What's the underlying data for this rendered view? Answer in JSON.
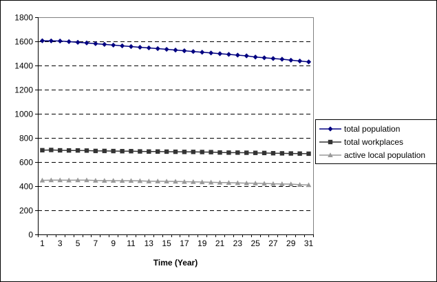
{
  "chart_data": {
    "type": "line",
    "title": "",
    "xlabel": "Time (Year)",
    "ylabel": "",
    "xlim": [
      1,
      31
    ],
    "ylim": [
      0,
      1800
    ],
    "y_ticks": [
      "0",
      "200",
      "400",
      "600",
      "800",
      "1000",
      "1200",
      "1400",
      "1600",
      "1800"
    ],
    "x_ticks": [
      "1",
      "3",
      "5",
      "7",
      "9",
      "11",
      "13",
      "15",
      "17",
      "19",
      "21",
      "23",
      "25",
      "27",
      "29",
      "31"
    ],
    "grid": "horizontal dashed",
    "legend_position": "right",
    "x": [
      1,
      2,
      3,
      4,
      5,
      6,
      7,
      8,
      9,
      10,
      11,
      12,
      13,
      14,
      15,
      16,
      17,
      18,
      19,
      20,
      21,
      22,
      23,
      24,
      25,
      26,
      27,
      28,
      29,
      30,
      31
    ],
    "series": [
      {
        "name": "total population",
        "color": "#000080",
        "marker": "diamond",
        "values": [
          1605,
          1604,
          1603,
          1598,
          1592,
          1587,
          1581,
          1575,
          1569,
          1563,
          1557,
          1551,
          1546,
          1540,
          1534,
          1528,
          1522,
          1516,
          1510,
          1504,
          1498,
          1492,
          1486,
          1480,
          1470,
          1464,
          1458,
          1452,
          1444,
          1437,
          1430
        ]
      },
      {
        "name": "total workplaces",
        "color": "#333333",
        "marker": "square",
        "values": [
          698,
          700,
          697,
          696,
          696,
          695,
          692,
          692,
          691,
          690,
          690,
          688,
          687,
          687,
          686,
          685,
          684,
          684,
          683,
          682,
          679,
          678,
          678,
          677,
          676,
          675,
          673,
          672,
          671,
          670,
          669
        ]
      },
      {
        "name": "active local population",
        "color": "#999999",
        "marker": "triangle",
        "values": [
          448,
          450,
          450,
          449,
          450,
          450,
          447,
          446,
          446,
          445,
          445,
          444,
          441,
          441,
          440,
          439,
          437,
          436,
          434,
          432,
          430,
          429,
          427,
          425,
          424,
          422,
          420,
          418,
          417,
          412,
          410
        ]
      }
    ]
  }
}
